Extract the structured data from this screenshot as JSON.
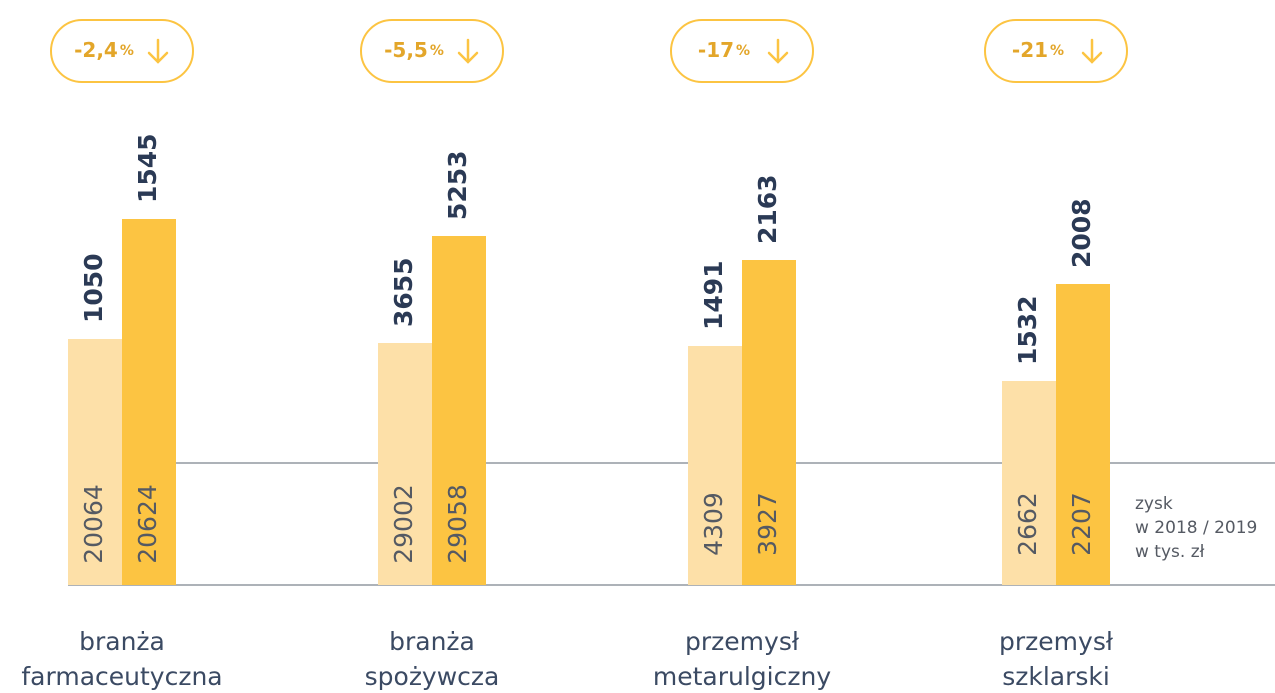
{
  "groups": [
    {
      "label": [
        "branża",
        "farmaceutyczna"
      ],
      "change": {
        "value": "-2,4",
        "unit": "%"
      },
      "values": [
        1050,
        1545
      ],
      "profit": [
        20064,
        20624
      ]
    },
    {
      "label": [
        "branża",
        "spożywcza"
      ],
      "change": {
        "value": "-5,5",
        "unit": "%"
      },
      "values": [
        3655,
        5253
      ],
      "profit": [
        29002,
        29058
      ]
    },
    {
      "label": [
        "przemysł",
        "metarulgiczny"
      ],
      "change": {
        "value": "-17",
        "unit": "%"
      },
      "values": [
        1491,
        2163
      ],
      "profit": [
        4309,
        3927
      ]
    },
    {
      "label": [
        "przemysł",
        "szklarski"
      ],
      "change": {
        "value": "-21",
        "unit": "%"
      },
      "values": [
        1532,
        2008
      ],
      "profit": [
        2662,
        2207
      ]
    }
  ],
  "legend": [
    "zysk",
    "w 2018 / 2019",
    "w tys. zł"
  ]
}
